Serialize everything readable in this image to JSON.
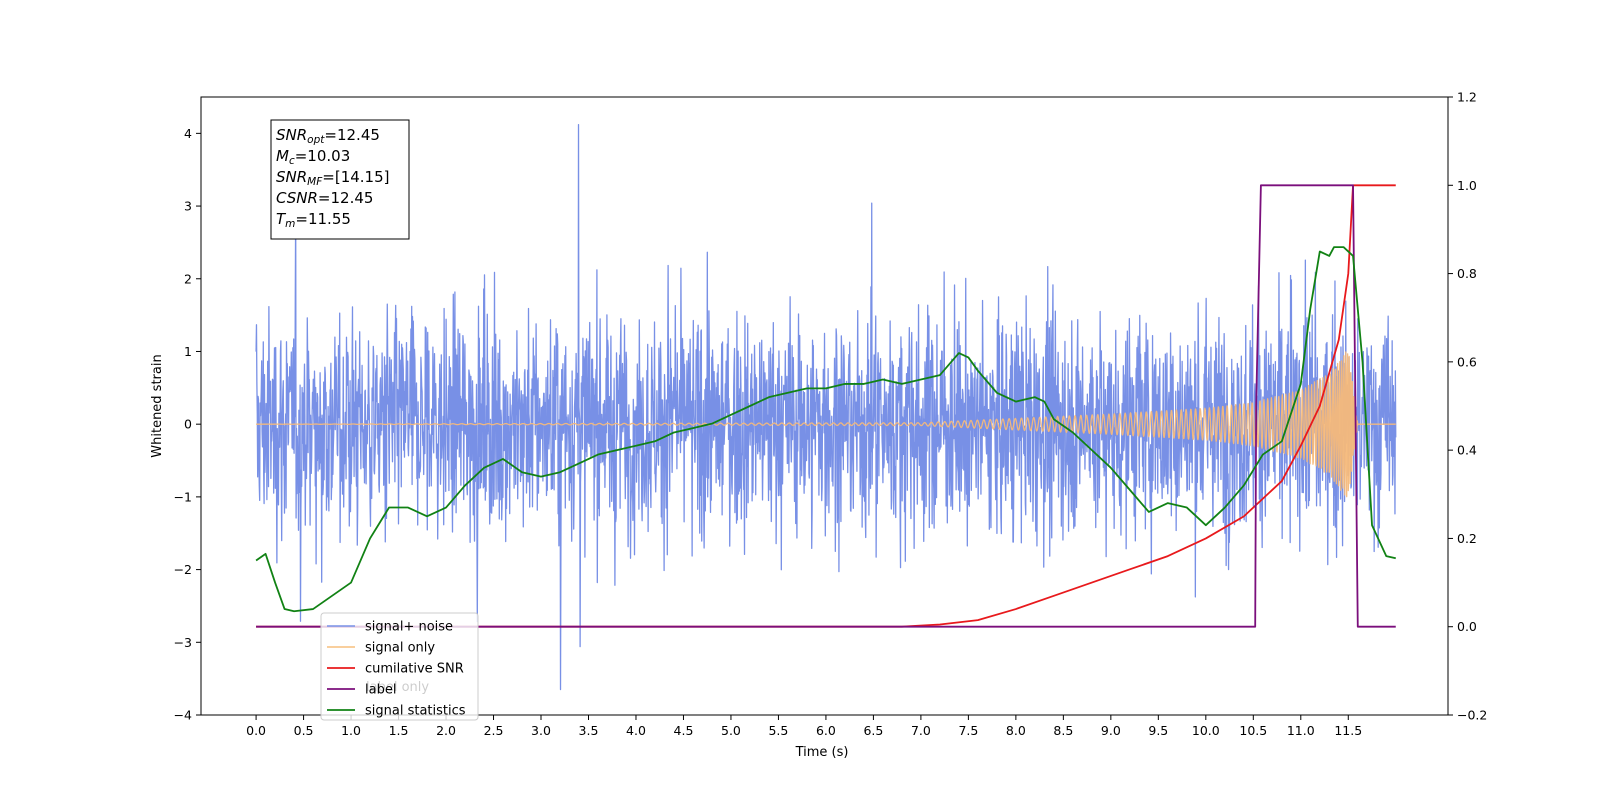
{
  "chart_data": {
    "type": "line",
    "xlabel": "Time (s)",
    "ylabel": "Whitened strain",
    "xlim": [
      -0.58,
      12.55
    ],
    "ylim_left": [
      -4,
      4.5
    ],
    "ylim_right": [
      -0.2,
      1.2
    ],
    "x_ticks": [
      "0.0",
      "0.5",
      "1.0",
      "1.5",
      "2.0",
      "2.5",
      "3.0",
      "3.5",
      "4.0",
      "4.5",
      "5.0",
      "5.5",
      "6.0",
      "6.5",
      "7.0",
      "7.5",
      "8.0",
      "8.5",
      "9.0",
      "9.5",
      "10.0",
      "10.5",
      "11.0",
      "11.5"
    ],
    "y_ticks_left": [
      "4",
      "3",
      "2",
      "1",
      "0",
      "−1",
      "−2",
      "−3",
      "−4"
    ],
    "y_ticks_right": [
      "1.2",
      "1.0",
      "0.8",
      "0.6",
      "0.4",
      "0.2",
      "0.0",
      "−0.2"
    ],
    "annotation": {
      "lines": [
        {
          "italic": "SNR",
          "sub": "opt",
          "rest": "=12.45"
        },
        {
          "italic": "M",
          "sub": "c",
          "rest": "=10.03"
        },
        {
          "italic": "SNR",
          "sub": "MF",
          "rest": "=[14.15]"
        },
        {
          "italic": "CSNR",
          "sub": "",
          "rest": "=12.45"
        },
        {
          "italic": "T",
          "sub": "m",
          "rest": "=11.55"
        }
      ]
    },
    "legend": {
      "placement": "lower-left",
      "entries": [
        "signal+ noise",
        "signal only",
        "cumilative SNR",
        "label",
        "signal statistics"
      ],
      "hidden_behind_text": [
        "label only"
      ]
    },
    "series": [
      {
        "name": "signal+ noise",
        "axis": "left",
        "color": "#7890e6",
        "x_range": [
          0.0,
          12.0
        ],
        "typical_amplitude": 2.2,
        "peak_max": 4.12,
        "peak_min": -3.65
      },
      {
        "name": "signal only",
        "axis": "left",
        "color": "#f5b97a",
        "x_range": [
          0.0,
          12.0
        ],
        "envelope": {
          "x": [
            0,
            7,
            8,
            9,
            10,
            10.5,
            11,
            11.3,
            11.5,
            11.6
          ],
          "amp": [
            0.0,
            0.02,
            0.08,
            0.14,
            0.22,
            0.3,
            0.47,
            0.7,
            1.05,
            0.0
          ]
        }
      },
      {
        "name": "cumilative SNR",
        "axis": "right",
        "color": "#e8191c",
        "x": [
          0,
          6.8,
          7.2,
          7.6,
          8.0,
          8.4,
          8.8,
          9.2,
          9.6,
          10.0,
          10.4,
          10.8,
          11.0,
          11.2,
          11.4,
          11.5,
          11.55,
          12.0
        ],
        "y": [
          0.0,
          0.0,
          0.005,
          0.015,
          0.04,
          0.07,
          0.1,
          0.13,
          0.16,
          0.2,
          0.25,
          0.33,
          0.41,
          0.5,
          0.65,
          0.8,
          1.0,
          1.0
        ]
      },
      {
        "name": "label",
        "axis": "right",
        "color": "#7b0f7c",
        "x": [
          0,
          10.52,
          10.53,
          10.58,
          11.5,
          11.55,
          11.6,
          12.0
        ],
        "y": [
          0,
          0,
          0.5,
          1,
          1,
          1,
          0,
          0
        ]
      },
      {
        "name": "signal statistics",
        "axis": "right",
        "color": "#118214",
        "x": [
          0,
          0.1,
          0.2,
          0.3,
          0.4,
          0.6,
          0.8,
          1.0,
          1.2,
          1.4,
          1.6,
          1.8,
          2.0,
          2.2,
          2.4,
          2.6,
          2.8,
          3.0,
          3.2,
          3.4,
          3.6,
          3.8,
          4.0,
          4.2,
          4.4,
          4.6,
          4.8,
          5.0,
          5.2,
          5.4,
          5.6,
          5.8,
          6.0,
          6.2,
          6.4,
          6.6,
          6.8,
          7.0,
          7.2,
          7.4,
          7.5,
          7.6,
          7.8,
          8.0,
          8.2,
          8.3,
          8.4,
          8.6,
          8.8,
          9.0,
          9.2,
          9.4,
          9.6,
          9.8,
          10.0,
          10.2,
          10.4,
          10.6,
          10.8,
          11.0,
          11.1,
          11.2,
          11.3,
          11.35,
          11.45,
          11.55,
          11.65,
          11.75,
          11.9,
          12.0
        ],
        "y": [
          0.15,
          0.165,
          0.1,
          0.04,
          0.035,
          0.04,
          0.07,
          0.1,
          0.2,
          0.27,
          0.27,
          0.25,
          0.27,
          0.32,
          0.36,
          0.38,
          0.35,
          0.34,
          0.35,
          0.37,
          0.39,
          0.4,
          0.41,
          0.42,
          0.44,
          0.45,
          0.46,
          0.48,
          0.5,
          0.52,
          0.53,
          0.54,
          0.54,
          0.55,
          0.55,
          0.56,
          0.55,
          0.56,
          0.57,
          0.62,
          0.61,
          0.58,
          0.53,
          0.51,
          0.52,
          0.51,
          0.47,
          0.44,
          0.4,
          0.36,
          0.31,
          0.26,
          0.28,
          0.27,
          0.23,
          0.27,
          0.32,
          0.39,
          0.42,
          0.55,
          0.72,
          0.85,
          0.84,
          0.86,
          0.86,
          0.84,
          0.6,
          0.23,
          0.16,
          0.155
        ]
      }
    ]
  }
}
